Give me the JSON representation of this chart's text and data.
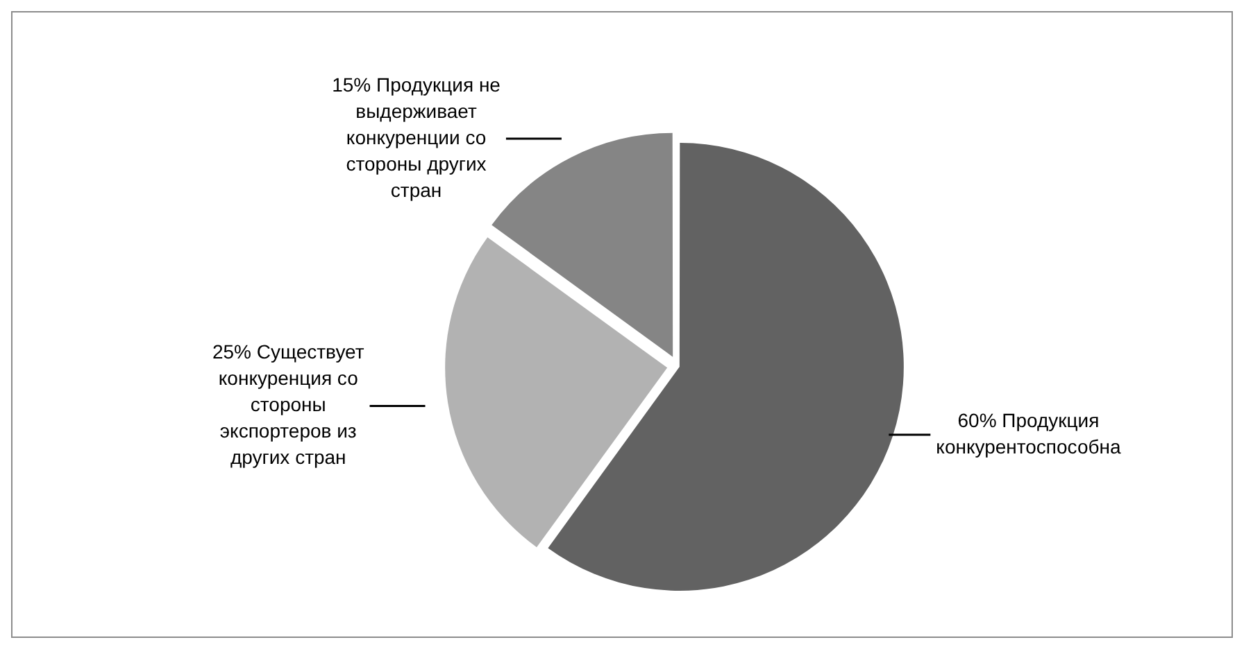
{
  "chart_data": {
    "type": "pie",
    "categories": [
      "60% Продукция конкурентоспособна",
      "25% Существует конкуренция со стороны экспортеров из других стран",
      "15% Продукция не выдерживает конкуренции со стороны других стран"
    ],
    "values": [
      60,
      25,
      15
    ],
    "colors": [
      "#626262",
      "#b2b2b2",
      "#858585"
    ],
    "legend": false
  }
}
